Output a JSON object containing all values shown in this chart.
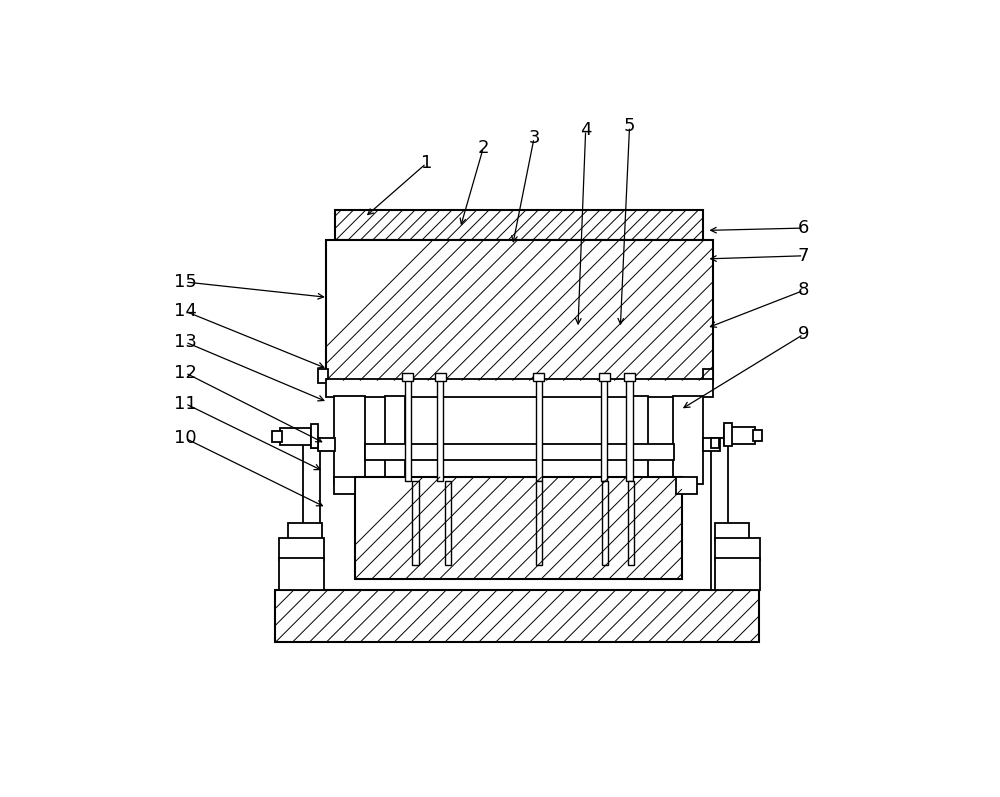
{
  "bg_color": "#ffffff",
  "lc": "#000000",
  "fig_w": 10.0,
  "fig_h": 7.97,
  "labels_data": [
    [
      "1",
      388,
      88,
      308,
      158
    ],
    [
      "2",
      462,
      68,
      432,
      172
    ],
    [
      "3",
      528,
      55,
      500,
      195
    ],
    [
      "4",
      595,
      45,
      585,
      302
    ],
    [
      "5",
      652,
      40,
      640,
      302
    ],
    [
      "6",
      878,
      172,
      752,
      175
    ],
    [
      "7",
      878,
      208,
      752,
      212
    ],
    [
      "8",
      878,
      253,
      752,
      302
    ],
    [
      "9",
      878,
      310,
      718,
      408
    ],
    [
      "10",
      75,
      445,
      258,
      535
    ],
    [
      "11",
      75,
      400,
      255,
      488
    ],
    [
      "12",
      75,
      360,
      257,
      452
    ],
    [
      "13",
      75,
      320,
      260,
      398
    ],
    [
      "14",
      75,
      280,
      260,
      355
    ],
    [
      "15",
      75,
      242,
      260,
      262
    ]
  ]
}
